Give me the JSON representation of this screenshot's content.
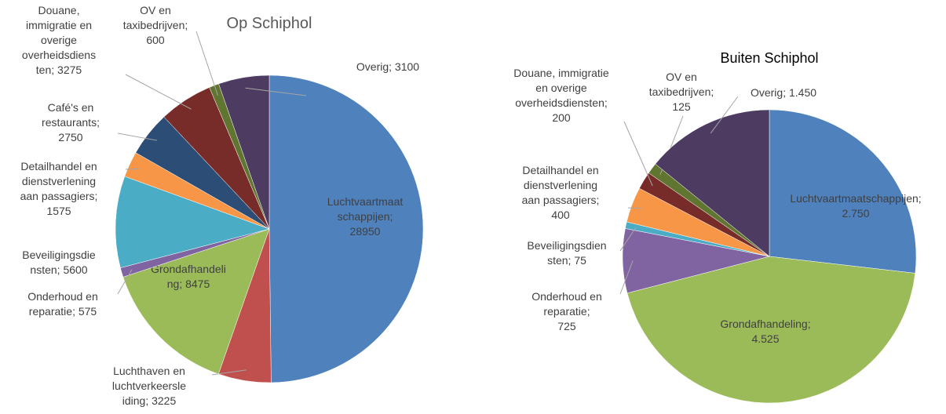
{
  "chart_data": [
    {
      "type": "pie",
      "title": "Op Schiphol",
      "label_separator": "; ",
      "categories": [
        "Luchtvaartmaatschappijen",
        "Luchthaven en luchtverkeersleiding",
        "Grondafhandeling",
        "Onderhoud en reparatie",
        "Beveiligingsdiensten",
        "Detailhandel en dienstverlening aan passagiers",
        "Café's en restaurants",
        "Douane, immigratie en overige overheidsdiensten",
        "OV en taxibedrijven",
        "Overig"
      ],
      "values": [
        28950,
        3225,
        8475,
        575,
        5600,
        1575,
        2750,
        3275,
        600,
        3100
      ],
      "colors": [
        "#4f81bd",
        "#c0504d",
        "#9bbb59",
        "#8064a2",
        "#4bacc6",
        "#f79646",
        "#2c4d75",
        "#772c2a",
        "#5f7530",
        "#4d3b62"
      ]
    },
    {
      "type": "pie",
      "title": "Buiten Schiphol",
      "label_separator": "; ",
      "categories": [
        "Luchtvaartmaatschappijen",
        "Grondafhandeling",
        "Onderhoud en reparatie",
        "Beveiligingsdiensten",
        "Detailhandel en dienstverlening aan passagiers",
        "Douane, immigratie en overige overheidsdiensten",
        "OV en taxibedrijven",
        "Overig"
      ],
      "values": [
        2750,
        4525,
        725,
        75,
        400,
        200,
        125,
        1450
      ],
      "value_labels": [
        "2.750",
        "4.525",
        "725",
        "75",
        "400",
        "200",
        "125",
        "1.450"
      ],
      "colors": [
        "#4f81bd",
        "#9bbb59",
        "#8064a2",
        "#4bacc6",
        "#f79646",
        "#772c2a",
        "#5f7530",
        "#4d3b62"
      ]
    }
  ]
}
